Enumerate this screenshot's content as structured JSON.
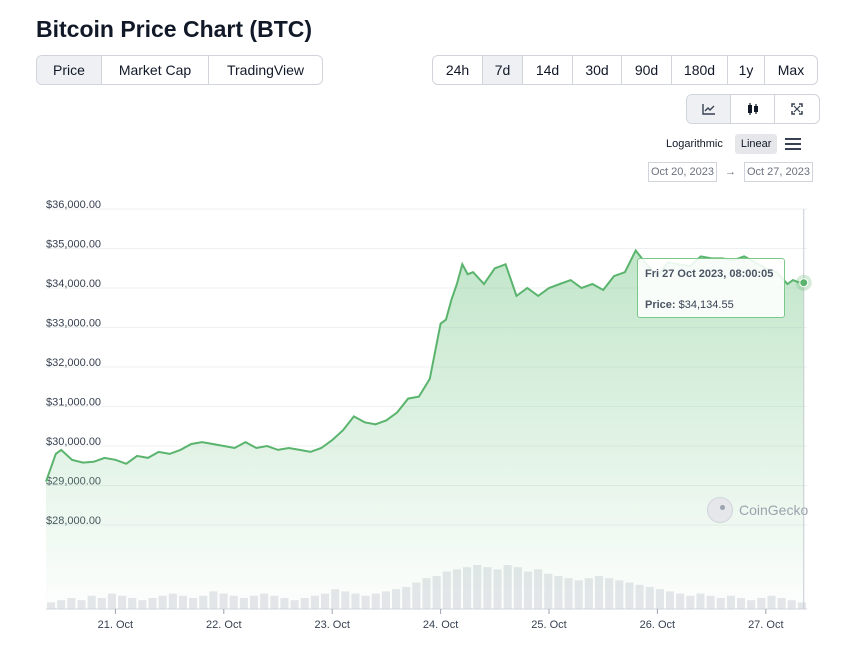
{
  "header": {
    "title": "Bitcoin Price Chart (BTC)"
  },
  "tabs": [
    {
      "label": "Price",
      "active": true
    },
    {
      "label": "Market Cap",
      "active": false
    },
    {
      "label": "TradingView",
      "active": false
    }
  ],
  "ranges": [
    {
      "label": "24h",
      "active": false
    },
    {
      "label": "7d",
      "active": true
    },
    {
      "label": "14d",
      "active": false
    },
    {
      "label": "30d",
      "active": false
    },
    {
      "label": "90d",
      "active": false
    },
    {
      "label": "180d",
      "active": false
    },
    {
      "label": "1y",
      "active": false
    },
    {
      "label": "Max",
      "active": false
    }
  ],
  "chart_types": [
    {
      "icon": "line-chart-icon",
      "active": true
    },
    {
      "icon": "candlestick-icon",
      "active": false
    },
    {
      "icon": "fullscreen-icon",
      "active": false
    }
  ],
  "scale": {
    "logarithmic_label": "Logarithmic",
    "linear_label": "Linear",
    "selected": "Linear"
  },
  "date_range": {
    "from": "Oct 20, 2023",
    "to": "Oct 27, 2023",
    "arrow": "→"
  },
  "tooltip": {
    "datetime": "Fri 27 Oct 2023, 08:00:05",
    "price_label": "Price:",
    "price_value": "$34,134.55"
  },
  "watermark": {
    "text": "CoinGecko"
  },
  "colors": {
    "line": "#5ab46d",
    "fill": "#8fd19e",
    "volume": "#e5e7eb"
  },
  "chart_data": {
    "type": "area",
    "title": "Bitcoin Price Chart (BTC)",
    "xlabel": "",
    "ylabel": "",
    "x_ticks": [
      "21. Oct",
      "22. Oct",
      "23. Oct",
      "24. Oct",
      "25. Oct",
      "26. Oct",
      "27. Oct"
    ],
    "y_ticks": [
      "$36,000.00",
      "$35,000.00",
      "$34,000.00",
      "$33,000.00",
      "$32,000.00",
      "$31,000.00",
      "$30,000.00",
      "$29,000.00",
      "$28,000.00"
    ],
    "ylim": [
      28000,
      36000
    ],
    "xlim": [
      20.36,
      27.38
    ],
    "grid": true,
    "series": [
      {
        "x": [
          20.36,
          20.45,
          20.5,
          20.6,
          20.7,
          20.8,
          20.9,
          21.0,
          21.1,
          21.2,
          21.3,
          21.4,
          21.5,
          21.6,
          21.7,
          21.8,
          21.9,
          22.0,
          22.1,
          22.2,
          22.3,
          22.4,
          22.5,
          22.6,
          22.7,
          22.8,
          22.9,
          23.0,
          23.1,
          23.2,
          23.3,
          23.4,
          23.5,
          23.6,
          23.7,
          23.8,
          23.9,
          24.0,
          24.05,
          24.1,
          24.15,
          24.2,
          24.25,
          24.3,
          24.4,
          24.5,
          24.6,
          24.7,
          24.8,
          24.9,
          25.0,
          25.1,
          25.2,
          25.3,
          25.4,
          25.5,
          25.6,
          25.7,
          25.8,
          25.9,
          26.0,
          26.1,
          26.2,
          26.3,
          26.4,
          26.5,
          26.6,
          26.7,
          26.8,
          26.9,
          27.0,
          27.1,
          27.2,
          27.25,
          27.3,
          27.35
        ],
        "y": [
          29100,
          29800,
          29900,
          29650,
          29580,
          29600,
          29700,
          29650,
          29550,
          29750,
          29700,
          29850,
          29800,
          29900,
          30050,
          30100,
          30050,
          30000,
          29950,
          30100,
          29950,
          30000,
          29900,
          29950,
          29900,
          29850,
          29950,
          30150,
          30400,
          30750,
          30600,
          30550,
          30650,
          30850,
          31200,
          31250,
          31700,
          33100,
          33200,
          33700,
          34100,
          34600,
          34350,
          34400,
          34100,
          34500,
          34600,
          33800,
          34000,
          33800,
          34000,
          34100,
          34200,
          34000,
          34100,
          33950,
          34300,
          34400,
          34950,
          34600,
          34300,
          34650,
          34600,
          34550,
          34800,
          34750,
          34750,
          34700,
          34800,
          34650,
          34500,
          34400,
          34100,
          34200,
          34150,
          34134
        ]
      }
    ],
    "volume": [
      3,
      4,
      5,
      4,
      6,
      5,
      7,
      6,
      5,
      4,
      5,
      6,
      7,
      6,
      5,
      6,
      8,
      7,
      6,
      5,
      6,
      7,
      6,
      5,
      4,
      5,
      6,
      7,
      9,
      8,
      7,
      6,
      7,
      8,
      9,
      10,
      12,
      14,
      15,
      17,
      18,
      19,
      20,
      19,
      18,
      20,
      19,
      17,
      18,
      16,
      15,
      14,
      13,
      14,
      15,
      14,
      13,
      12,
      11,
      10,
      9,
      8,
      7,
      6,
      7,
      6,
      5,
      6,
      5,
      4,
      5,
      6,
      5,
      4,
      3
    ]
  }
}
